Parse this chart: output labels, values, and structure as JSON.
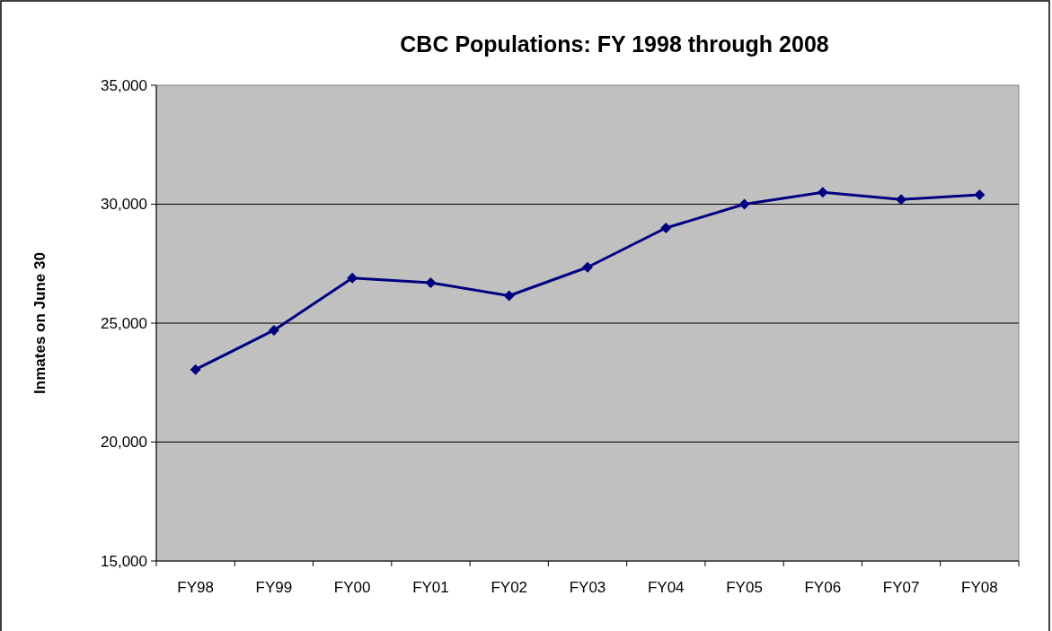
{
  "chart_data": {
    "type": "line",
    "title": "CBC Populations: FY 1998 through 2008",
    "ylabel": "Inmates on June 30",
    "categories": [
      "FY98",
      "FY99",
      "FY00",
      "FY01",
      "FY02",
      "FY03",
      "FY04",
      "FY05",
      "FY06",
      "FY07",
      "FY08"
    ],
    "series": [
      {
        "color": "#000080",
        "values": [
          23050,
          24700,
          26900,
          26700,
          26150,
          27350,
          29000,
          30000,
          30500,
          30200,
          30400
        ]
      }
    ],
    "ylim": [
      15000,
      35000
    ],
    "yticks": [
      {
        "value": 15000,
        "label": "15,000"
      },
      {
        "value": 20000,
        "label": "20,000"
      },
      {
        "value": 25000,
        "label": "25,000"
      },
      {
        "value": 30000,
        "label": "30,000"
      },
      {
        "value": 35000,
        "label": "35,000"
      }
    ],
    "grid": "y",
    "marker": "diamond",
    "line_style": "solid"
  }
}
